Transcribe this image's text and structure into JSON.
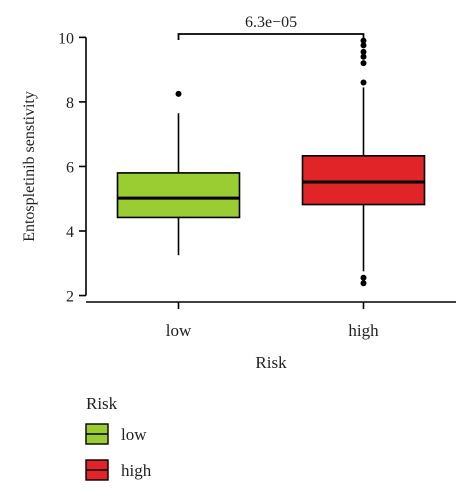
{
  "chart_data": {
    "type": "box",
    "title": "",
    "xlabel": "Risk",
    "ylabel": "Entospletinib senstivity",
    "ylim": [
      1.8,
      10.6
    ],
    "yticks": [
      2,
      4,
      6,
      8,
      10
    ],
    "categories": [
      "low",
      "high"
    ],
    "boxes": [
      {
        "category": "low",
        "whisker_low": 3.25,
        "q1": 4.42,
        "median": 5.02,
        "q3": 5.8,
        "whisker_high": 7.65,
        "outliers": [
          8.25
        ],
        "color": "#9acd32"
      },
      {
        "category": "high",
        "whisker_low": 2.75,
        "q1": 4.82,
        "median": 5.52,
        "q3": 6.33,
        "whisker_high": 8.45,
        "outliers": [
          2.38,
          2.55,
          8.6,
          9.2,
          9.4,
          9.55,
          9.75,
          9.9
        ],
        "color": "#e02428"
      }
    ],
    "annotation": {
      "label": "6.3e−05"
    },
    "legend": {
      "title": "Risk",
      "placement": "bottom-left",
      "entries": [
        {
          "label": "low",
          "color": "#9acd32"
        },
        {
          "label": "high",
          "color": "#e02428"
        }
      ]
    }
  }
}
